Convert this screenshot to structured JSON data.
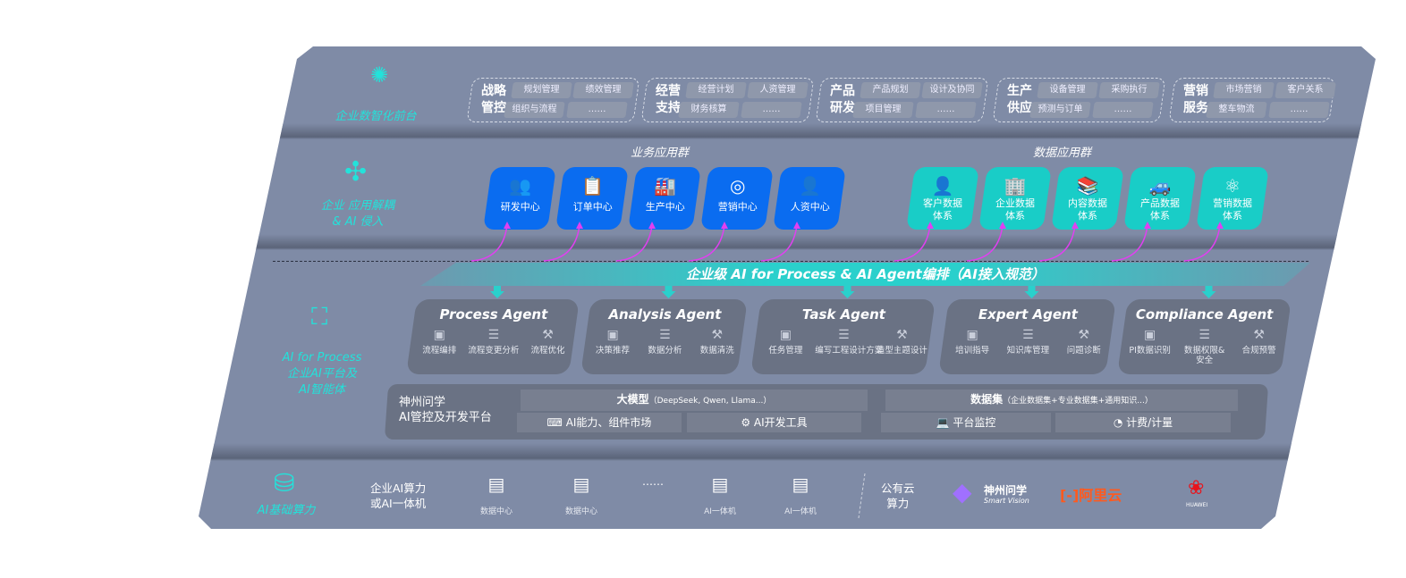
{
  "front": {
    "label": "企业数智化前台",
    "icon": "brain-icon",
    "groups": [
      {
        "title": "战略\n管控",
        "items": [
          "规划管理",
          "绩效管理",
          "组织与流程",
          "……"
        ]
      },
      {
        "title": "经营\n支持",
        "items": [
          "经营计划",
          "人资管理",
          "财务核算",
          "……"
        ]
      },
      {
        "title": "产品\n研发",
        "items": [
          "产品规划",
          "设计及协同",
          "项目管理",
          "……"
        ]
      },
      {
        "title": "生产\n供应",
        "items": [
          "设备管理",
          "采购执行",
          "预测与订单",
          "……"
        ]
      },
      {
        "title": "营销\n服务",
        "items": [
          "市场营销",
          "客户关系",
          "整车物流",
          "……"
        ]
      }
    ]
  },
  "apps": {
    "label": "企业 应用解耦\n& AI 侵入",
    "business_title": "业务应用群",
    "data_title": "数据应用群",
    "business": [
      {
        "label": "研发中心",
        "icon": "people-icon"
      },
      {
        "label": "订单中心",
        "icon": "clipboard-icon"
      },
      {
        "label": "生产中心",
        "icon": "factory-icon"
      },
      {
        "label": "营销中心",
        "icon": "target-icon"
      },
      {
        "label": "人资中心",
        "icon": "person-icon"
      }
    ],
    "data": [
      {
        "label": "客户数据\n体系",
        "icon": "user-icon"
      },
      {
        "label": "企业数据\n体系",
        "icon": "building-icon"
      },
      {
        "label": "内容数据\n体系",
        "icon": "books-icon"
      },
      {
        "label": "产品数据\n体系",
        "icon": "car-icon"
      },
      {
        "label": "营销数据\n体系",
        "icon": "atom-icon"
      }
    ],
    "colors": {
      "business": "#0a6cf0",
      "data": "#19cdc7",
      "arrow": "#e040f0"
    }
  },
  "orchestration": {
    "title": "企业级 AI for Process & AI Agent编排（AI接入规范）"
  },
  "ai": {
    "label": "AI for Process\n企业AI平台及\nAI智能体",
    "agents": [
      {
        "name": "Process Agent",
        "items": [
          "流程编排",
          "流程变更分析",
          "流程优化"
        ]
      },
      {
        "name": "Analysis Agent",
        "items": [
          "决策推荐",
          "数据分析",
          "数据清洗"
        ]
      },
      {
        "name": "Task Agent",
        "items": [
          "任务管理",
          "编写工程设计方案",
          "造型主题设计"
        ]
      },
      {
        "name": "Expert Agent",
        "items": [
          "培训指导",
          "知识库管理",
          "问题诊断"
        ]
      },
      {
        "name": "Compliance Agent",
        "items": [
          "PI数据识别",
          "数据权限&\n安全",
          "合规预警"
        ]
      }
    ],
    "platform": {
      "title": "神州问学\nAI管控及开发平台",
      "model": "大模型",
      "model_note": "（DeepSeek, Qwen, Llama...）",
      "dataset": "数据集",
      "dataset_note": "（企业数据集+专业数据集+通用知识...）",
      "tools": [
        "AI能力、组件市场",
        "AI开发工具",
        "平台监控",
        "计费/计量"
      ]
    }
  },
  "compute": {
    "label": "AI基础算力",
    "private": "企业AI算力\n或AI一体机",
    "nodes": [
      "数据中心",
      "数据中心",
      "……",
      "AI一体机",
      "AI一体机"
    ],
    "public": "公有云\n算力",
    "vendors": [
      "神州问学",
      "Smart Vision",
      "阿里云",
      "HUAWEI"
    ],
    "accent": "#23e2da"
  }
}
